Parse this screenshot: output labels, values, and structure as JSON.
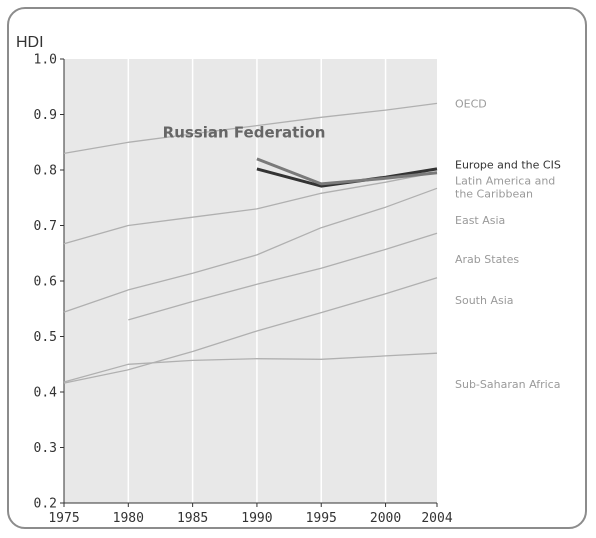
{
  "chart_data": {
    "type": "line",
    "ylabel": "HDI",
    "x": [
      1975,
      1980,
      1985,
      1990,
      1995,
      2000,
      2004
    ],
    "x_ticks": [
      "1975",
      "1980",
      "1985",
      "1990",
      "1995",
      "2000",
      "2004"
    ],
    "y_ticks": [
      "1.0",
      "0.9",
      "0.8",
      "0.7",
      "0.6",
      "0.5",
      "0.4",
      "0.3",
      "0.2"
    ],
    "ylim": [
      0.2,
      1.0
    ],
    "xlim": [
      1975,
      2004
    ],
    "grid": "vertical",
    "annotation": "Russian Federation",
    "series": [
      {
        "name": "OECD",
        "color": "#b0b0b0",
        "highlight": false,
        "points": [
          [
            1975,
            0.83
          ],
          [
            1980,
            0.85
          ],
          [
            1985,
            0.865
          ],
          [
            1990,
            0.88
          ],
          [
            1995,
            0.895
          ],
          [
            2000,
            0.908
          ],
          [
            2004,
            0.92
          ]
        ]
      },
      {
        "name": "Europe and the CIS",
        "color": "#333333",
        "highlight": true,
        "points": [
          [
            1990,
            0.802
          ],
          [
            1995,
            0.771
          ],
          [
            2000,
            0.787
          ],
          [
            2004,
            0.802
          ]
        ]
      },
      {
        "name": "Latin America and the Caribbean",
        "color": "#b0b0b0",
        "highlight": false,
        "points": [
          [
            1975,
            0.667
          ],
          [
            1980,
            0.7
          ],
          [
            1985,
            0.715
          ],
          [
            1990,
            0.73
          ],
          [
            1995,
            0.758
          ],
          [
            2000,
            0.778
          ],
          [
            2004,
            0.796
          ]
        ]
      },
      {
        "name": "East Asia",
        "color": "#b0b0b0",
        "highlight": false,
        "points": [
          [
            1975,
            0.544
          ],
          [
            1980,
            0.584
          ],
          [
            1985,
            0.614
          ],
          [
            1990,
            0.647
          ],
          [
            1995,
            0.696
          ],
          [
            2000,
            0.733
          ],
          [
            2004,
            0.767
          ]
        ]
      },
      {
        "name": "Arab States",
        "color": "#b0b0b0",
        "highlight": false,
        "points": [
          [
            1980,
            0.53
          ],
          [
            1985,
            0.563
          ],
          [
            1990,
            0.594
          ],
          [
            1995,
            0.623
          ],
          [
            2000,
            0.657
          ],
          [
            2004,
            0.686
          ]
        ]
      },
      {
        "name": "South Asia",
        "color": "#b0b0b0",
        "highlight": false,
        "points": [
          [
            1975,
            0.416
          ],
          [
            1980,
            0.44
          ],
          [
            1985,
            0.473
          ],
          [
            1990,
            0.51
          ],
          [
            1995,
            0.543
          ],
          [
            2000,
            0.577
          ],
          [
            2004,
            0.606
          ]
        ]
      },
      {
        "name": "Sub-Saharan Africa",
        "color": "#b0b0b0",
        "highlight": false,
        "points": [
          [
            1975,
            0.418
          ],
          [
            1980,
            0.45
          ],
          [
            1985,
            0.457
          ],
          [
            1990,
            0.46
          ],
          [
            1995,
            0.459
          ],
          [
            2000,
            0.465
          ],
          [
            2004,
            0.47
          ]
        ]
      },
      {
        "name": "Russian Federation",
        "color": "#7a7a7a",
        "highlight": true,
        "unlabeled_line": true,
        "points": [
          [
            1990,
            0.82
          ],
          [
            1995,
            0.775
          ],
          [
            2000,
            0.785
          ],
          [
            2004,
            0.795
          ]
        ]
      }
    ],
    "legend": [
      {
        "text": "OECD",
        "y": 0.92,
        "dark": false
      },
      {
        "text": "Europe and the CIS",
        "y": 0.81,
        "dark": true
      },
      {
        "text": "Latin America and",
        "y": 0.781,
        "dark": false
      },
      {
        "text": "the Caribbean",
        "y": 0.758,
        "dark": false
      },
      {
        "text": "East Asia",
        "y": 0.71,
        "dark": false
      },
      {
        "text": "Arab States",
        "y": 0.64,
        "dark": false
      },
      {
        "text": "South Asia",
        "y": 0.566,
        "dark": false
      },
      {
        "text": "Sub-Saharan Africa",
        "y": 0.414,
        "dark": false
      }
    ],
    "annotation_at": [
      1989,
      0.868
    ]
  }
}
